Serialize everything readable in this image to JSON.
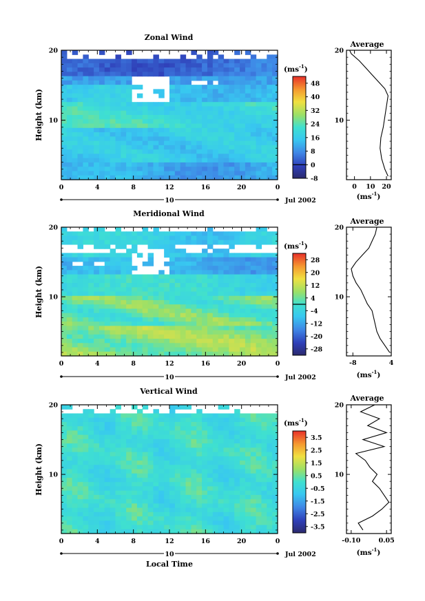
{
  "chart_data": [
    {
      "type": "heatmap",
      "title": "Zonal Wind",
      "xlabel": "",
      "ylabel": "Height (km)",
      "x_ticks": [
        "0",
        "4",
        "8",
        "12",
        "16",
        "20",
        "0"
      ],
      "xlim": [
        0,
        24
      ],
      "y_ticks": [
        "10",
        "20"
      ],
      "ylim": [
        1.5,
        20
      ],
      "date_label": "10",
      "month_label": "Jul 2002",
      "colorbar": {
        "unit_base": "(ms",
        "unit_exp": "-1",
        "unit_close": ")",
        "tick_labels": [
          "48",
          "40",
          "32",
          "24",
          "16",
          "8",
          "0",
          "-8"
        ],
        "range": [
          -8,
          52
        ],
        "contour_at": 0
      },
      "profile": {
        "title": "Average",
        "x_ticks": [
          "0",
          "10",
          "20"
        ],
        "xlim": [
          -5,
          23
        ],
        "xlabel_base": "(ms",
        "xlabel_exp": "-1",
        "xlabel_close": ")",
        "y_ticks": [
          "10",
          "20"
        ],
        "values": [
          [
            21,
            2
          ],
          [
            19,
            3
          ],
          [
            17,
            4.5
          ],
          [
            16,
            6
          ],
          [
            16.5,
            7.5
          ],
          [
            18,
            9
          ],
          [
            19,
            10.5
          ],
          [
            20,
            12
          ],
          [
            21,
            13.5
          ],
          [
            19,
            14.5
          ],
          [
            15,
            15.5
          ],
          [
            11,
            16.5
          ],
          [
            7,
            17.5
          ],
          [
            3,
            18.5
          ],
          [
            -2,
            19.5
          ],
          [
            -3,
            20
          ]
        ]
      }
    },
    {
      "type": "heatmap",
      "title": "Meridional Wind",
      "xlabel": "",
      "ylabel": "Height (km)",
      "x_ticks": [
        "0",
        "4",
        "8",
        "12",
        "16",
        "20",
        "0"
      ],
      "xlim": [
        0,
        24
      ],
      "y_ticks": [
        "10",
        "20"
      ],
      "ylim": [
        1.5,
        20
      ],
      "date_label": "10",
      "month_label": "Jul 2002",
      "colorbar": {
        "unit_base": "(ms",
        "unit_exp": "-1",
        "unit_close": ")",
        "tick_labels": [
          "28",
          "20",
          "12",
          "4",
          "-4",
          "-12",
          "-20",
          "-28"
        ],
        "range": [
          -32,
          32
        ],
        "contour_at": 0
      },
      "profile": {
        "title": "Average",
        "x_ticks": [
          "-8",
          "4"
        ],
        "xlim": [
          -10,
          4
        ],
        "xlabel_base": "(ms",
        "xlabel_exp": "-1",
        "xlabel_close": ")",
        "y_ticks": [
          "10",
          "20"
        ],
        "values": [
          [
            3.5,
            2
          ],
          [
            2,
            3
          ],
          [
            0.5,
            4
          ],
          [
            -0.5,
            5
          ],
          [
            -1,
            6
          ],
          [
            -1.5,
            7
          ],
          [
            -2,
            8
          ],
          [
            -3.5,
            9
          ],
          [
            -4.5,
            10
          ],
          [
            -5.5,
            11
          ],
          [
            -7,
            12
          ],
          [
            -8,
            13
          ],
          [
            -8.5,
            14
          ],
          [
            -7,
            15
          ],
          [
            -5,
            16
          ],
          [
            -3,
            17
          ],
          [
            -2,
            18
          ],
          [
            -1,
            19
          ],
          [
            -0.5,
            20
          ]
        ]
      }
    },
    {
      "type": "heatmap",
      "title": "Vertical Wind",
      "xlabel": "Local Time",
      "ylabel": "Height (km)",
      "x_ticks": [
        "0",
        "4",
        "8",
        "12",
        "16",
        "20",
        "0"
      ],
      "xlim": [
        0,
        24
      ],
      "y_ticks": [
        "10",
        "20"
      ],
      "ylim": [
        1.5,
        20
      ],
      "date_label": "10",
      "month_label": "Jul 2002",
      "colorbar": {
        "unit_base": "(ms",
        "unit_exp": "-1",
        "unit_close": ")",
        "tick_labels": [
          "3.5",
          "2.5",
          "1.5",
          "0.5",
          "-0.5",
          "-1.5",
          "-2.5",
          "-3.5"
        ],
        "range": [
          -4,
          4
        ],
        "contour_at": null
      },
      "profile": {
        "title": "Average",
        "x_ticks": [
          "-0.10",
          "0.05"
        ],
        "xlim": [
          -0.12,
          0.07
        ],
        "xlabel_base": "(ms",
        "xlabel_exp": "-1",
        "xlabel_close": ")",
        "y_ticks": [
          "10",
          "20"
        ],
        "values": [
          [
            -0.05,
            2
          ],
          [
            -0.07,
            3
          ],
          [
            -0.01,
            4
          ],
          [
            0.03,
            5
          ],
          [
            0.06,
            6
          ],
          [
            0.04,
            7
          ],
          [
            0.02,
            8
          ],
          [
            -0.01,
            9
          ],
          [
            0.01,
            10
          ],
          [
            -0.02,
            11
          ],
          [
            -0.04,
            12
          ],
          [
            -0.08,
            13
          ],
          [
            0.04,
            14
          ],
          [
            -0.05,
            15
          ],
          [
            0.05,
            16
          ],
          [
            -0.03,
            17
          ],
          [
            0.02,
            18
          ],
          [
            -0.06,
            19
          ],
          [
            0.0,
            20
          ]
        ]
      }
    }
  ]
}
